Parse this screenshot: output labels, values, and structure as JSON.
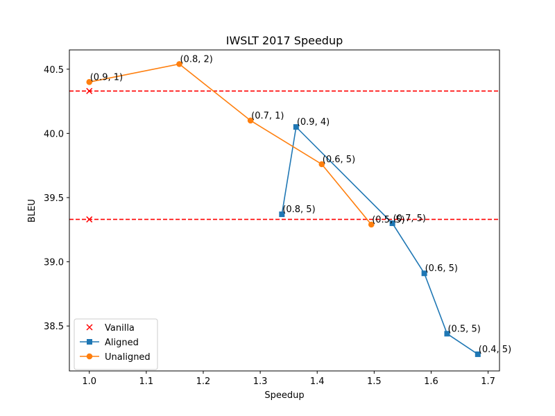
{
  "chart_data": {
    "type": "line",
    "title": "IWSLT 2017 Speedup",
    "xlabel": "Speedup",
    "ylabel": "BLEU",
    "xlim": [
      0.965,
      1.72
    ],
    "ylim": [
      38.15,
      40.65
    ],
    "x_ticks": [
      1.0,
      1.1,
      1.2,
      1.3,
      1.4,
      1.5,
      1.6,
      1.7
    ],
    "x_tick_labels": [
      "1.0",
      "1.1",
      "1.2",
      "1.3",
      "1.4",
      "1.5",
      "1.6",
      "1.7"
    ],
    "y_ticks": [
      38.5,
      39.0,
      39.5,
      40.0,
      40.5
    ],
    "y_tick_labels": [
      "38.5",
      "39.0",
      "39.5",
      "40.0",
      "40.5"
    ],
    "grid": false,
    "legend_position": "lower-left",
    "reference_lines": [
      {
        "y": 40.33,
        "color": "#ff0000",
        "style": "dashed"
      },
      {
        "y": 39.33,
        "color": "#ff0000",
        "style": "dashed"
      }
    ],
    "series": [
      {
        "name": "Vanilla",
        "type": "scatter",
        "marker": "x",
        "color": "#ff0000",
        "points": [
          {
            "x": 1.0,
            "y": 40.33
          },
          {
            "x": 1.0,
            "y": 39.33
          }
        ]
      },
      {
        "name": "Aligned",
        "type": "line",
        "marker": "square",
        "color": "#1f77b4",
        "points": [
          {
            "x": 1.338,
            "y": 39.37,
            "label": "(0.8, 5)"
          },
          {
            "x": 1.363,
            "y": 40.05,
            "label": "(0.9, 4)"
          },
          {
            "x": 1.532,
            "y": 39.3,
            "label": "(0.7, 5)"
          },
          {
            "x": 1.588,
            "y": 38.91,
            "label": "(0.6, 5)"
          },
          {
            "x": 1.628,
            "y": 38.44,
            "label": "(0.5, 5)"
          },
          {
            "x": 1.682,
            "y": 38.28,
            "label": "(0.4, 5)"
          }
        ]
      },
      {
        "name": "Unaligned",
        "type": "line",
        "marker": "circle",
        "color": "#ff7f0e",
        "points": [
          {
            "x": 1.0,
            "y": 40.4,
            "label": "(0.9, 1)"
          },
          {
            "x": 1.158,
            "y": 40.54,
            "label": "(0.8, 2)"
          },
          {
            "x": 1.283,
            "y": 40.1,
            "label": "(0.7, 1)"
          },
          {
            "x": 1.408,
            "y": 39.76,
            "label": "(0.6, 5)"
          },
          {
            "x": 1.495,
            "y": 39.29,
            "label": "(0.5, 5)"
          }
        ]
      }
    ]
  }
}
